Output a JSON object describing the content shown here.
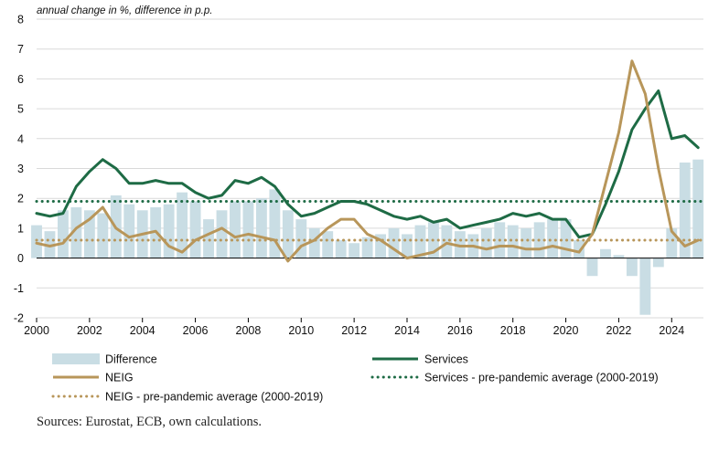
{
  "chart_data": {
    "type": "line",
    "subtitle": "annual change in %, difference in p.p.",
    "xlabel": "",
    "ylabel": "",
    "xlim": [
      2000,
      2025.2
    ],
    "ylim": [
      -2,
      8
    ],
    "x_ticks": [
      "2000",
      "2002",
      "2004",
      "2006",
      "2008",
      "2010",
      "2012",
      "2014",
      "2016",
      "2018",
      "2020",
      "2022",
      "2024"
    ],
    "y_ticks": [
      "-2",
      "-1",
      "0",
      "1",
      "2",
      "3",
      "4",
      "5",
      "6",
      "7",
      "8"
    ],
    "grid": "horizontal",
    "legend_position": "bottom",
    "series": [
      {
        "name": "Difference",
        "kind": "bar",
        "color": "#c9dde4",
        "x": [
          2000.0,
          2000.5,
          2001.0,
          2001.5,
          2002.0,
          2002.5,
          2003.0,
          2003.5,
          2004.0,
          2004.5,
          2005.0,
          2005.5,
          2006.0,
          2006.5,
          2007.0,
          2007.5,
          2008.0,
          2008.5,
          2009.0,
          2009.5,
          2010.0,
          2010.5,
          2011.0,
          2011.5,
          2012.0,
          2012.5,
          2013.0,
          2013.5,
          2014.0,
          2014.5,
          2015.0,
          2015.5,
          2016.0,
          2016.5,
          2017.0,
          2017.5,
          2018.0,
          2018.5,
          2019.0,
          2019.5,
          2020.0,
          2020.5,
          2021.0,
          2021.5,
          2022.0,
          2022.5,
          2023.0,
          2023.5,
          2024.0,
          2024.5,
          2025.0
        ],
        "values": [
          1.1,
          0.9,
          1.6,
          1.7,
          1.6,
          1.5,
          2.1,
          1.8,
          1.6,
          1.7,
          1.8,
          2.2,
          1.9,
          1.3,
          1.6,
          1.9,
          1.9,
          2.0,
          2.3,
          1.6,
          1.3,
          1.0,
          0.9,
          0.6,
          0.5,
          0.7,
          0.8,
          1.0,
          0.8,
          1.1,
          1.2,
          1.1,
          0.9,
          0.8,
          1.0,
          1.2,
          1.1,
          1.0,
          1.2,
          1.3,
          1.3,
          0.6,
          -0.6,
          0.3,
          0.1,
          -0.6,
          -1.9,
          -0.3,
          1.0,
          3.2,
          3.3
        ]
      },
      {
        "name": "Services",
        "kind": "line",
        "color": "#1e6b45",
        "x": [
          2000.0,
          2000.5,
          2001.0,
          2001.5,
          2002.0,
          2002.5,
          2003.0,
          2003.5,
          2004.0,
          2004.5,
          2005.0,
          2005.5,
          2006.0,
          2006.5,
          2007.0,
          2007.5,
          2008.0,
          2008.5,
          2009.0,
          2009.5,
          2010.0,
          2010.5,
          2011.0,
          2011.5,
          2012.0,
          2012.5,
          2013.0,
          2013.5,
          2014.0,
          2014.5,
          2015.0,
          2015.5,
          2016.0,
          2016.5,
          2017.0,
          2017.5,
          2018.0,
          2018.5,
          2019.0,
          2019.5,
          2020.0,
          2020.5,
          2021.0,
          2021.5,
          2022.0,
          2022.5,
          2023.0,
          2023.5,
          2024.0,
          2024.5,
          2025.0
        ],
        "values": [
          1.5,
          1.4,
          1.5,
          2.4,
          2.9,
          3.3,
          3.0,
          2.5,
          2.5,
          2.6,
          2.5,
          2.5,
          2.2,
          2.0,
          2.1,
          2.6,
          2.5,
          2.7,
          2.4,
          1.8,
          1.4,
          1.5,
          1.7,
          1.9,
          1.9,
          1.8,
          1.6,
          1.4,
          1.3,
          1.4,
          1.2,
          1.3,
          1.0,
          1.1,
          1.2,
          1.3,
          1.5,
          1.4,
          1.5,
          1.3,
          1.3,
          0.7,
          0.8,
          1.8,
          2.9,
          4.3,
          5.0,
          5.6,
          4.0,
          4.1,
          3.7
        ]
      },
      {
        "name": "NEIG",
        "kind": "line",
        "color": "#b8965a",
        "x": [
          2000.0,
          2000.5,
          2001.0,
          2001.5,
          2002.0,
          2002.5,
          2003.0,
          2003.5,
          2004.0,
          2004.5,
          2005.0,
          2005.5,
          2006.0,
          2006.5,
          2007.0,
          2007.5,
          2008.0,
          2008.5,
          2009.0,
          2009.5,
          2010.0,
          2010.5,
          2011.0,
          2011.5,
          2012.0,
          2012.5,
          2013.0,
          2013.5,
          2014.0,
          2014.5,
          2015.0,
          2015.5,
          2016.0,
          2016.5,
          2017.0,
          2017.5,
          2018.0,
          2018.5,
          2019.0,
          2019.5,
          2020.0,
          2020.5,
          2021.0,
          2021.5,
          2022.0,
          2022.5,
          2023.0,
          2023.5,
          2024.0,
          2024.5,
          2025.0
        ],
        "values": [
          0.5,
          0.4,
          0.5,
          1.0,
          1.3,
          1.7,
          1.0,
          0.7,
          0.8,
          0.9,
          0.4,
          0.2,
          0.6,
          0.8,
          1.0,
          0.7,
          0.8,
          0.7,
          0.6,
          -0.1,
          0.4,
          0.6,
          1.0,
          1.3,
          1.3,
          0.8,
          0.6,
          0.3,
          0.0,
          0.1,
          0.2,
          0.5,
          0.4,
          0.4,
          0.3,
          0.4,
          0.4,
          0.3,
          0.3,
          0.4,
          0.3,
          0.2,
          0.8,
          2.5,
          4.2,
          6.6,
          5.5,
          3.0,
          0.9,
          0.4,
          0.6
        ]
      },
      {
        "name": "Services - pre-pandemic average (2000-2019)",
        "kind": "reference",
        "color": "#1e6b45",
        "value": 1.9
      },
      {
        "name": "NEIG - pre-pandemic average (2000-2019)",
        "kind": "reference",
        "color": "#b8965a",
        "value": 0.6
      }
    ]
  },
  "footer": {
    "source": "Sources: Eurostat, ECB, own calculations."
  }
}
